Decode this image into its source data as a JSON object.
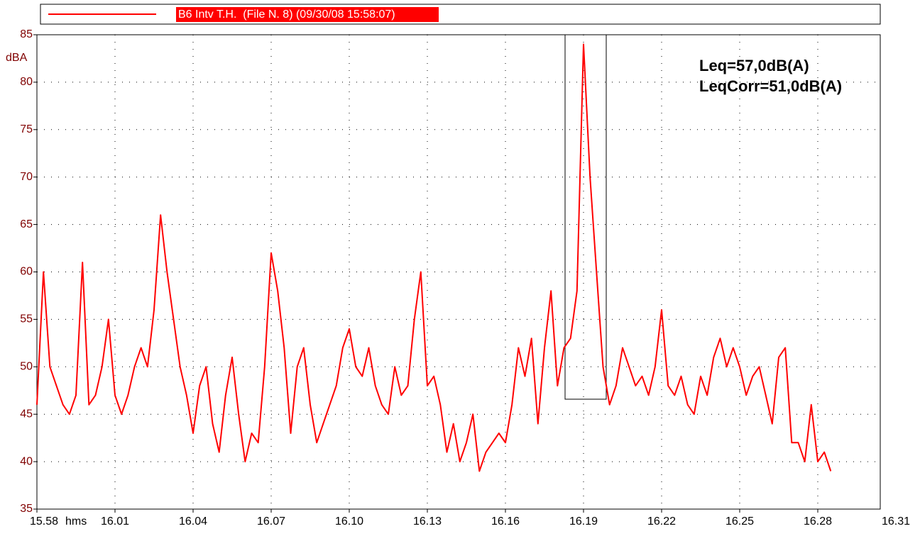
{
  "chart_data": {
    "type": "line",
    "legend_text": "B6 Intv T.H.  (File N. 8) (09/30/08 15:58:07)",
    "y_unit": "dBA",
    "x_unit": "hms",
    "annotations": [
      "Leq=57,0dB(A)",
      "LeqCorr=51,0dB(A)"
    ],
    "xlim": [
      958,
      991
    ],
    "xticks": [
      {
        "value": 958,
        "label": "15.58"
      },
      {
        "value": 961,
        "label": "16.01"
      },
      {
        "value": 964,
        "label": "16.04"
      },
      {
        "value": 967,
        "label": "16.07"
      },
      {
        "value": 970,
        "label": "16.10"
      },
      {
        "value": 973,
        "label": "16.13"
      },
      {
        "value": 976,
        "label": "16.16"
      },
      {
        "value": 979,
        "label": "16.19"
      },
      {
        "value": 982,
        "label": "16.22"
      },
      {
        "value": 985,
        "label": "16.25"
      },
      {
        "value": 988,
        "label": "16.28"
      },
      {
        "value": 991,
        "label": "16.31"
      }
    ],
    "ylim": [
      35,
      85
    ],
    "yticks": [
      35,
      40,
      45,
      50,
      55,
      60,
      65,
      70,
      75,
      80,
      85
    ],
    "grid": true,
    "x": [
      958,
      958.25,
      958.5,
      958.75,
      959,
      959.25,
      959.5,
      959.75,
      960,
      960.25,
      960.5,
      960.75,
      961,
      961.25,
      961.5,
      961.75,
      962,
      962.25,
      962.5,
      962.75,
      963,
      963.25,
      963.5,
      963.75,
      964,
      964.25,
      964.5,
      964.75,
      965,
      965.25,
      965.5,
      965.75,
      966,
      966.25,
      966.5,
      966.75,
      967,
      967.25,
      967.5,
      967.75,
      968,
      968.25,
      968.5,
      968.75,
      969,
      969.25,
      969.5,
      969.75,
      970,
      970.25,
      970.5,
      970.75,
      971,
      971.25,
      971.5,
      971.75,
      972,
      972.25,
      972.5,
      972.75,
      973,
      973.25,
      973.5,
      973.75,
      974,
      974.25,
      974.5,
      974.75,
      975,
      975.25,
      975.5,
      975.75,
      976,
      976.25,
      976.5,
      976.75,
      977,
      977.25,
      977.5,
      977.75,
      978,
      978.25,
      978.5,
      978.75,
      979,
      979.25,
      979.5,
      979.75,
      980,
      980.25,
      980.5,
      980.75,
      981,
      981.25,
      981.5,
      981.75,
      982,
      982.25,
      982.5,
      982.75,
      983,
      983.25,
      983.5,
      983.75,
      984,
      984.25,
      984.5,
      984.75,
      985,
      985.25,
      985.5,
      985.75,
      986,
      986.25,
      986.5,
      986.75,
      987,
      987.25,
      987.5,
      987.75,
      988,
      988.25,
      988.5
    ],
    "series": [
      {
        "name": "B6 Intv T.H.",
        "color": "#ff0000",
        "values": [
          46,
          60,
          50,
          48,
          46,
          45,
          47,
          61,
          46,
          47,
          50,
          55,
          47,
          45,
          47,
          50,
          52,
          50,
          56,
          66,
          60,
          55,
          50,
          47,
          43,
          48,
          50,
          44,
          41,
          47,
          51,
          45,
          40,
          43,
          42,
          50,
          62,
          58,
          52,
          43,
          50,
          52,
          46,
          42,
          44,
          46,
          48,
          52,
          54,
          50,
          49,
          52,
          48,
          46,
          45,
          50,
          47,
          48,
          55,
          60,
          48,
          49,
          46,
          41,
          44,
          40,
          42,
          45,
          39,
          41,
          42,
          43,
          42,
          46,
          52,
          49,
          53,
          44,
          52,
          58,
          48,
          52,
          53,
          58,
          84,
          70,
          60,
          50,
          46,
          48,
          52,
          50,
          48,
          49,
          47,
          50,
          56,
          48,
          47,
          49,
          46,
          45,
          49,
          47,
          51,
          53,
          50,
          52,
          50,
          47,
          49,
          50,
          47,
          44,
          51,
          52,
          42,
          42,
          40,
          46,
          40,
          41,
          39
        ]
      }
    ]
  }
}
